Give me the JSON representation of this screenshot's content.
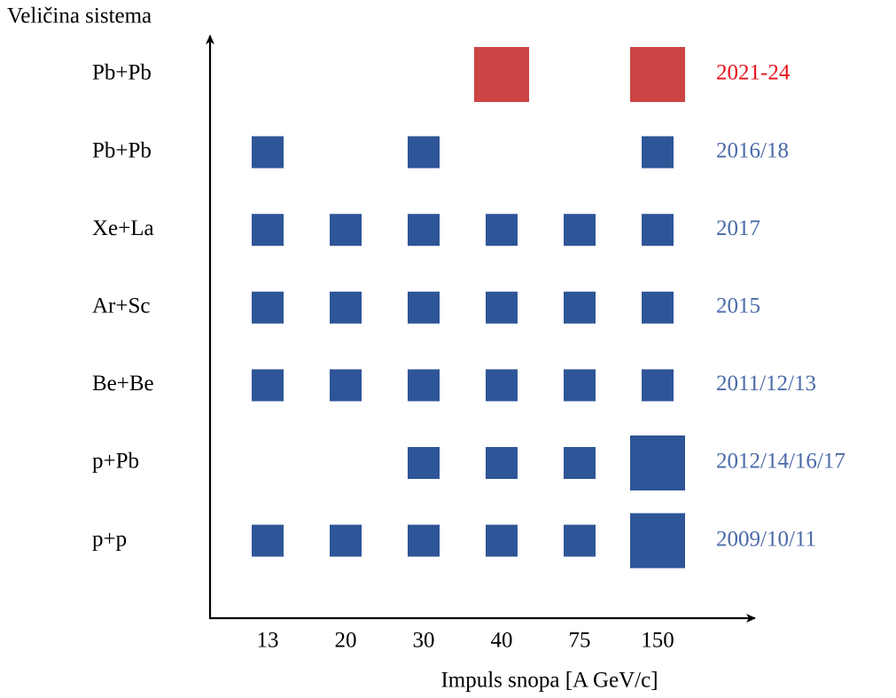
{
  "y_axis_label": "Veličina sistema",
  "x_axis_label": "Impuls snopa [A GeV/c]",
  "momenta": [
    "13",
    "20",
    "30",
    "40",
    "75",
    "150"
  ],
  "rows": [
    {
      "system": "Pb+Pb",
      "years": "2021-24",
      "color": "#cc4444",
      "label_color": "#e8101a",
      "beams": [
        "40",
        "150"
      ],
      "large": [
        "40",
        "150"
      ]
    },
    {
      "system": "Pb+Pb",
      "years": "2016/18",
      "color": "#2e5597",
      "label_color": "#4a6aa8",
      "beams": [
        "13",
        "30",
        "150"
      ],
      "large": []
    },
    {
      "system": "Xe+La",
      "years": "2017",
      "color": "#2e5597",
      "label_color": "#4a6aa8",
      "beams": [
        "13",
        "20",
        "30",
        "40",
        "75",
        "150"
      ],
      "large": []
    },
    {
      "system": "Ar+Sc",
      "years": "2015",
      "color": "#2e5597",
      "label_color": "#4a6aa8",
      "beams": [
        "13",
        "20",
        "30",
        "40",
        "75",
        "150"
      ],
      "large": []
    },
    {
      "system": "Be+Be",
      "years": "2011/12/13",
      "color": "#2e5597",
      "label_color": "#4a6aa8",
      "beams": [
        "13",
        "20",
        "30",
        "40",
        "75",
        "150"
      ],
      "large": []
    },
    {
      "system": "p+Pb",
      "years": "2012/14/16/17",
      "color": "#2e5597",
      "label_color": "#4a6aa8",
      "beams": [
        "30",
        "40",
        "75",
        "150"
      ],
      "large": [
        "150"
      ]
    },
    {
      "system": "p+p",
      "years": "2009/10/11",
      "color": "#2e5597",
      "label_color": "#4a6aa8",
      "beams": [
        "13",
        "20",
        "30",
        "40",
        "75",
        "150"
      ],
      "large": [
        "150"
      ]
    }
  ]
}
